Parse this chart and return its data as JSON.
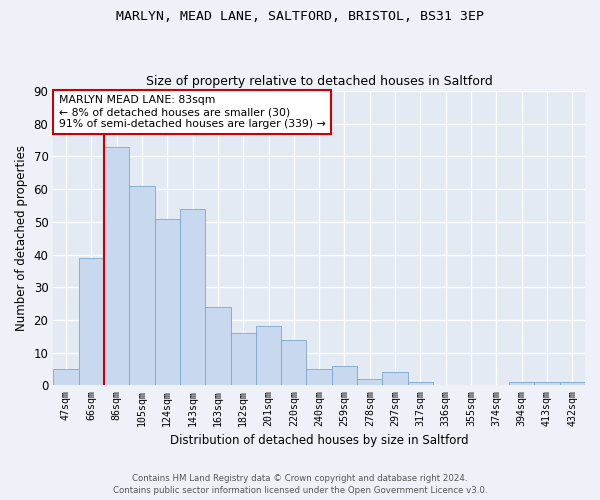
{
  "title1": "MARLYN, MEAD LANE, SALTFORD, BRISTOL, BS31 3EP",
  "title2": "Size of property relative to detached houses in Saltford",
  "xlabel": "Distribution of detached houses by size in Saltford",
  "ylabel": "Number of detached properties",
  "bins": [
    "47sqm",
    "66sqm",
    "86sqm",
    "105sqm",
    "124sqm",
    "143sqm",
    "163sqm",
    "182sqm",
    "201sqm",
    "220sqm",
    "240sqm",
    "259sqm",
    "278sqm",
    "297sqm",
    "317sqm",
    "336sqm",
    "355sqm",
    "374sqm",
    "394sqm",
    "413sqm",
    "432sqm"
  ],
  "values": [
    5,
    39,
    73,
    61,
    51,
    54,
    24,
    16,
    18,
    14,
    5,
    6,
    2,
    4,
    1,
    0,
    0,
    0,
    1,
    1,
    1
  ],
  "bar_color": "#c8d8ee",
  "bar_edge_color": "#7aa8cc",
  "marker_line_color": "#cc0000",
  "annotation_line1": "MARLYN MEAD LANE: 83sqm",
  "annotation_line2": "← 8% of detached houses are smaller (30)",
  "annotation_line3": "91% of semi-detached houses are larger (339) →",
  "annotation_box_color": "#ffffff",
  "annotation_box_edge": "#cc0000",
  "footer1": "Contains HM Land Registry data © Crown copyright and database right 2024.",
  "footer2": "Contains public sector information licensed under the Open Government Licence v3.0.",
  "ylim": [
    0,
    90
  ],
  "yticks": [
    0,
    10,
    20,
    30,
    40,
    50,
    60,
    70,
    80,
    90
  ],
  "background_color": "#eef2f8",
  "plot_bg_color": "#e4eaf4"
}
